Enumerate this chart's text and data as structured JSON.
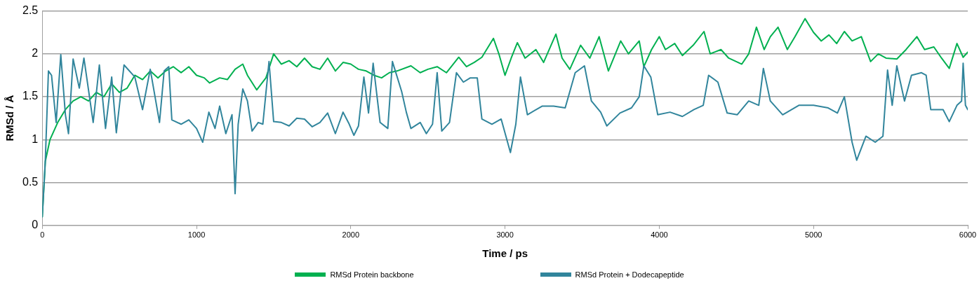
{
  "chart_data": {
    "type": "line",
    "xlabel": "Time / ps",
    "ylabel": "RMSd / Å",
    "xlim": [
      0,
      6000
    ],
    "xticks": [
      0,
      1000,
      2000,
      3000,
      4000,
      5000,
      6000
    ],
    "ylim": [
      0,
      2.5
    ],
    "yticks": [
      0,
      0.5,
      1,
      1.5,
      2,
      2.5
    ],
    "grid": "y",
    "legend": "bottom",
    "marker": "none",
    "line_style": "solid",
    "series": [
      {
        "name": "RMSd Protein backbone",
        "color": "#00b050",
        "x": [
          0,
          20,
          50,
          100,
          150,
          200,
          250,
          300,
          350,
          400,
          450,
          500,
          550,
          600,
          650,
          700,
          750,
          800,
          850,
          900,
          950,
          1000,
          1050,
          1085,
          1150,
          1200,
          1250,
          1300,
          1330,
          1390,
          1450,
          1500,
          1550,
          1600,
          1650,
          1700,
          1750,
          1800,
          1850,
          1900,
          1950,
          2000,
          2050,
          2100,
          2150,
          2200,
          2250,
          2300,
          2390,
          2450,
          2500,
          2560,
          2620,
          2700,
          2750,
          2800,
          2850,
          2925,
          2960,
          3000,
          3040,
          3080,
          3130,
          3200,
          3250,
          3330,
          3370,
          3420,
          3490,
          3550,
          3610,
          3670,
          3750,
          3800,
          3870,
          3900,
          3950,
          4000,
          4040,
          4100,
          4150,
          4220,
          4290,
          4330,
          4400,
          4450,
          4535,
          4580,
          4630,
          4680,
          4720,
          4770,
          4830,
          4880,
          4945,
          5000,
          5050,
          5100,
          5150,
          5200,
          5250,
          5310,
          5370,
          5420,
          5470,
          5540,
          5600,
          5670,
          5720,
          5780,
          5830,
          5880,
          5930,
          5970,
          6000
        ],
        "values": [
          0.1,
          0.75,
          1.0,
          1.2,
          1.35,
          1.45,
          1.5,
          1.45,
          1.55,
          1.5,
          1.65,
          1.55,
          1.6,
          1.75,
          1.7,
          1.8,
          1.72,
          1.8,
          1.85,
          1.78,
          1.85,
          1.75,
          1.72,
          1.66,
          1.72,
          1.7,
          1.82,
          1.88,
          1.75,
          1.58,
          1.72,
          2.0,
          1.88,
          1.92,
          1.85,
          1.95,
          1.85,
          1.82,
          1.95,
          1.8,
          1.9,
          1.88,
          1.82,
          1.8,
          1.75,
          1.72,
          1.78,
          1.8,
          1.86,
          1.78,
          1.82,
          1.85,
          1.78,
          1.96,
          1.85,
          1.9,
          1.96,
          2.18,
          2.0,
          1.75,
          1.95,
          2.13,
          1.95,
          2.05,
          1.9,
          2.23,
          1.95,
          1.82,
          2.1,
          1.95,
          2.2,
          1.8,
          2.15,
          2.0,
          2.15,
          1.85,
          2.05,
          2.2,
          2.05,
          2.12,
          1.98,
          2.1,
          2.26,
          2.0,
          2.05,
          1.95,
          1.88,
          2.0,
          2.31,
          2.05,
          2.2,
          2.31,
          2.05,
          2.2,
          2.41,
          2.25,
          2.15,
          2.22,
          2.12,
          2.26,
          2.15,
          2.2,
          1.91,
          2.0,
          1.95,
          1.94,
          2.05,
          2.2,
          2.05,
          2.08,
          1.95,
          1.83,
          2.12,
          1.96,
          2.02
        ]
      },
      {
        "name": "RMSd Protein + Dodecapeptide",
        "color": "#31859c",
        "x": [
          0,
          20,
          40,
          60,
          90,
          120,
          150,
          170,
          200,
          240,
          270,
          330,
          370,
          410,
          450,
          480,
          530,
          600,
          650,
          700,
          760,
          790,
          820,
          840,
          900,
          950,
          1000,
          1040,
          1080,
          1120,
          1150,
          1190,
          1230,
          1250,
          1270,
          1300,
          1330,
          1360,
          1400,
          1430,
          1470,
          1500,
          1550,
          1600,
          1650,
          1700,
          1750,
          1800,
          1850,
          1900,
          1950,
          1990,
          2020,
          2050,
          2085,
          2115,
          2145,
          2190,
          2240,
          2270,
          2330,
          2360,
          2390,
          2450,
          2490,
          2530,
          2560,
          2590,
          2640,
          2685,
          2730,
          2775,
          2820,
          2850,
          2915,
          2975,
          3035,
          3070,
          3100,
          3145,
          3240,
          3315,
          3390,
          3455,
          3515,
          3560,
          3620,
          3660,
          3745,
          3820,
          3870,
          3900,
          3945,
          3990,
          4070,
          4150,
          4225,
          4285,
          4320,
          4380,
          4440,
          4505,
          4580,
          4645,
          4675,
          4720,
          4800,
          4905,
          5000,
          5095,
          5155,
          5200,
          5250,
          5280,
          5340,
          5400,
          5450,
          5480,
          5510,
          5540,
          5590,
          5635,
          5700,
          5730,
          5760,
          5840,
          5880,
          5930,
          5960,
          5970,
          5985,
          6000
        ],
        "values": [
          0.1,
          0.77,
          1.8,
          1.75,
          1.2,
          1.99,
          1.29,
          1.07,
          1.94,
          1.6,
          1.95,
          1.2,
          1.87,
          1.13,
          1.73,
          1.08,
          1.87,
          1.73,
          1.35,
          1.82,
          1.2,
          1.8,
          1.85,
          1.23,
          1.18,
          1.23,
          1.13,
          0.97,
          1.32,
          1.13,
          1.39,
          1.07,
          1.29,
          0.37,
          1.18,
          1.59,
          1.45,
          1.1,
          1.2,
          1.18,
          1.91,
          1.21,
          1.2,
          1.16,
          1.25,
          1.24,
          1.15,
          1.2,
          1.31,
          1.07,
          1.32,
          1.18,
          1.05,
          1.16,
          1.73,
          1.31,
          1.89,
          1.2,
          1.13,
          1.91,
          1.56,
          1.32,
          1.13,
          1.2,
          1.07,
          1.18,
          1.78,
          1.1,
          1.2,
          1.78,
          1.67,
          1.72,
          1.72,
          1.24,
          1.18,
          1.24,
          0.85,
          1.18,
          1.73,
          1.29,
          1.39,
          1.39,
          1.37,
          1.78,
          1.86,
          1.45,
          1.32,
          1.16,
          1.31,
          1.37,
          1.5,
          1.86,
          1.73,
          1.29,
          1.32,
          1.27,
          1.35,
          1.4,
          1.75,
          1.67,
          1.31,
          1.29,
          1.45,
          1.4,
          1.83,
          1.45,
          1.29,
          1.4,
          1.4,
          1.37,
          1.31,
          1.5,
          0.97,
          0.76,
          1.04,
          0.97,
          1.04,
          1.81,
          1.4,
          1.86,
          1.45,
          1.75,
          1.78,
          1.75,
          1.35,
          1.35,
          1.21,
          1.4,
          1.45,
          1.89,
          1.4,
          1.35
        ]
      }
    ]
  }
}
